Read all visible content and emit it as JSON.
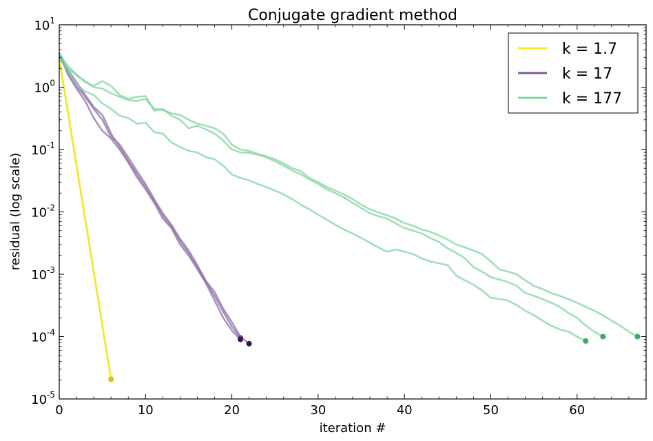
{
  "chart_data": {
    "type": "line",
    "title": "Conjugate gradient method",
    "xlabel": "iteration #",
    "ylabel": "residual (log scale)",
    "xlim": [
      0,
      68
    ],
    "ylim": [
      1e-05,
      10
    ],
    "yscale": "log",
    "xticks": [
      "0",
      "10",
      "20",
      "30",
      "40",
      "50",
      "60"
    ],
    "yticks": [
      {
        "base": "10",
        "exp": "1"
      },
      {
        "base": "10",
        "exp": "0"
      },
      {
        "base": "10",
        "exp": "-1"
      },
      {
        "base": "10",
        "exp": "-2"
      },
      {
        "base": "10",
        "exp": "-3"
      },
      {
        "base": "10",
        "exp": "-4"
      },
      {
        "base": "10",
        "exp": "-5"
      }
    ],
    "grid": false,
    "legend_position": "top-right",
    "legend": [
      {
        "label": "k = 1.7",
        "color": "#fde725"
      },
      {
        "label": "k = 17",
        "color": "#7e5b99"
      },
      {
        "label": "k = 177",
        "color": "#80d4a0"
      }
    ],
    "series": [
      {
        "group": 0,
        "color": "#f3e52b",
        "marker": "#d8c81e",
        "x": [
          0,
          6
        ],
        "y": [
          2.8,
          2.1e-05
        ]
      },
      {
        "group": 0,
        "color": "#f3e52b",
        "marker": "#d8c81e",
        "x": [
          0,
          6
        ],
        "y": [
          3.0,
          2.05e-05
        ]
      },
      {
        "group": 1,
        "color": "#8c6fa6",
        "marker": "#3b1550",
        "x": [
          0,
          1,
          2,
          3,
          4,
          5,
          6,
          7,
          8,
          9,
          10,
          11,
          12,
          13,
          14,
          15,
          16,
          17,
          18,
          19,
          20,
          21
        ],
        "y": [
          3.4,
          1.9,
          1.2,
          0.75,
          0.48,
          0.36,
          0.18,
          0.11,
          0.066,
          0.04,
          0.025,
          0.015,
          0.0088,
          0.0058,
          0.0034,
          0.0022,
          0.0013,
          0.00075,
          0.00045,
          0.00025,
          0.000145,
          9.5e-05
        ]
      },
      {
        "group": 1,
        "color": "#8c6fa6",
        "marker": "#3b1550",
        "x": [
          0,
          1,
          2,
          3,
          4,
          5,
          6,
          7,
          8,
          9,
          10,
          11,
          12,
          13,
          14,
          15,
          16,
          17,
          18,
          19,
          20,
          21,
          22
        ],
        "y": [
          3.2,
          1.7,
          1.05,
          0.7,
          0.45,
          0.3,
          0.16,
          0.12,
          0.075,
          0.045,
          0.028,
          0.016,
          0.0095,
          0.0062,
          0.0037,
          0.0024,
          0.0014,
          0.00078,
          0.00052,
          0.00028,
          0.00017,
          0.0001,
          7.7e-05
        ]
      },
      {
        "group": 1,
        "color": "#8c6fa6",
        "marker": "#3b1550",
        "x": [
          0,
          1,
          2,
          3,
          4,
          5,
          6,
          7,
          8,
          9,
          10,
          11,
          12,
          13,
          14,
          15,
          16,
          17,
          18,
          19,
          20,
          21
        ],
        "y": [
          3.5,
          1.6,
          0.95,
          0.6,
          0.32,
          0.2,
          0.15,
          0.1,
          0.062,
          0.036,
          0.023,
          0.014,
          0.0078,
          0.0055,
          0.003,
          0.002,
          0.0012,
          0.00072,
          0.00038,
          0.0002,
          0.000125,
          9e-05
        ]
      },
      {
        "group": 2,
        "color": "#80d4a0",
        "marker": "#3fa86a",
        "x": [
          0,
          1,
          2,
          3,
          4,
          5,
          6,
          7,
          8,
          9,
          10,
          11,
          12,
          13,
          14,
          15,
          16,
          17,
          18,
          19,
          20,
          21,
          22,
          23,
          24,
          25,
          26,
          27,
          28,
          29,
          30,
          31,
          32,
          33,
          34,
          35,
          36,
          37,
          38,
          39,
          40,
          41,
          42,
          43,
          44,
          45,
          46,
          47,
          48,
          49,
          50,
          51,
          52,
          53,
          54,
          55,
          56,
          57,
          58,
          59,
          60,
          61,
          62,
          63,
          64,
          65,
          66,
          67
        ],
        "y": [
          3.6,
          2.0,
          1.55,
          1.25,
          1.0,
          0.95,
          0.8,
          0.7,
          0.62,
          0.6,
          0.65,
          0.45,
          0.43,
          0.38,
          0.36,
          0.3,
          0.26,
          0.24,
          0.22,
          0.18,
          0.12,
          0.1,
          0.095,
          0.085,
          0.078,
          0.07,
          0.06,
          0.05,
          0.045,
          0.035,
          0.03,
          0.025,
          0.022,
          0.019,
          0.016,
          0.013,
          0.011,
          0.0098,
          0.0088,
          0.0078,
          0.0066,
          0.006,
          0.0052,
          0.0048,
          0.0042,
          0.0036,
          0.003,
          0.0027,
          0.0024,
          0.0021,
          0.0016,
          0.0012,
          0.0011,
          0.001,
          0.0008,
          0.00065,
          0.00058,
          0.0005,
          0.00045,
          0.0004,
          0.00035,
          0.0003,
          0.00026,
          0.00022,
          0.00018,
          0.00015,
          0.00012,
          0.0001
        ]
      },
      {
        "group": 2,
        "color": "#80d4a0",
        "marker": "#3fa86a",
        "x": [
          0,
          1,
          2,
          3,
          4,
          5,
          6,
          7,
          8,
          9,
          10,
          11,
          12,
          13,
          14,
          15,
          16,
          17,
          18,
          19,
          20,
          21,
          22,
          23,
          24,
          25,
          26,
          27,
          28,
          29,
          30,
          31,
          32,
          33,
          34,
          35,
          36,
          37,
          38,
          39,
          40,
          41,
          42,
          43,
          44,
          45,
          46,
          47,
          48,
          49,
          50,
          51,
          52,
          53,
          54,
          55,
          56,
          57,
          58,
          59,
          60,
          61,
          62,
          63
        ],
        "y": [
          3.3,
          2.2,
          1.6,
          1.2,
          1.05,
          1.25,
          1.05,
          0.75,
          0.65,
          0.7,
          0.72,
          0.42,
          0.45,
          0.35,
          0.3,
          0.22,
          0.24,
          0.21,
          0.18,
          0.14,
          0.1,
          0.09,
          0.088,
          0.083,
          0.075,
          0.065,
          0.055,
          0.046,
          0.04,
          0.033,
          0.028,
          0.023,
          0.02,
          0.017,
          0.014,
          0.0115,
          0.0095,
          0.0085,
          0.0078,
          0.0065,
          0.0055,
          0.005,
          0.0045,
          0.0038,
          0.0033,
          0.0026,
          0.0022,
          0.0018,
          0.0013,
          0.0011,
          0.0009,
          0.00082,
          0.00075,
          0.00065,
          0.0005,
          0.00045,
          0.0004,
          0.00035,
          0.0003,
          0.00024,
          0.0002,
          0.00015,
          0.00012,
          0.0001
        ]
      },
      {
        "group": 2,
        "color": "#80d4a0",
        "marker": "#3fa86a",
        "x": [
          0,
          1,
          2,
          3,
          4,
          5,
          6,
          7,
          8,
          9,
          10,
          11,
          12,
          13,
          14,
          15,
          16,
          17,
          18,
          19,
          20,
          21,
          22,
          23,
          24,
          25,
          26,
          27,
          28,
          29,
          30,
          31,
          32,
          33,
          34,
          35,
          36,
          37,
          38,
          39,
          40,
          41,
          42,
          43,
          44,
          45,
          46,
          47,
          48,
          49,
          50,
          51,
          52,
          53,
          54,
          55,
          56,
          57,
          58,
          59,
          60,
          61
        ],
        "y": [
          3.0,
          1.8,
          1.1,
          0.85,
          0.75,
          0.55,
          0.45,
          0.35,
          0.32,
          0.26,
          0.27,
          0.19,
          0.18,
          0.13,
          0.11,
          0.095,
          0.09,
          0.075,
          0.07,
          0.055,
          0.04,
          0.035,
          0.032,
          0.028,
          0.025,
          0.022,
          0.019,
          0.016,
          0.013,
          0.011,
          0.009,
          0.0075,
          0.0062,
          0.0052,
          0.0045,
          0.0038,
          0.0032,
          0.0027,
          0.0023,
          0.0025,
          0.0023,
          0.0021,
          0.0018,
          0.0016,
          0.0015,
          0.0014,
          0.00095,
          0.0008,
          0.00068,
          0.00055,
          0.00042,
          0.0004,
          0.00038,
          0.00032,
          0.00026,
          0.00022,
          0.00018,
          0.00015,
          0.00013,
          0.00012,
          0.0001,
          8.5e-05
        ]
      }
    ]
  }
}
